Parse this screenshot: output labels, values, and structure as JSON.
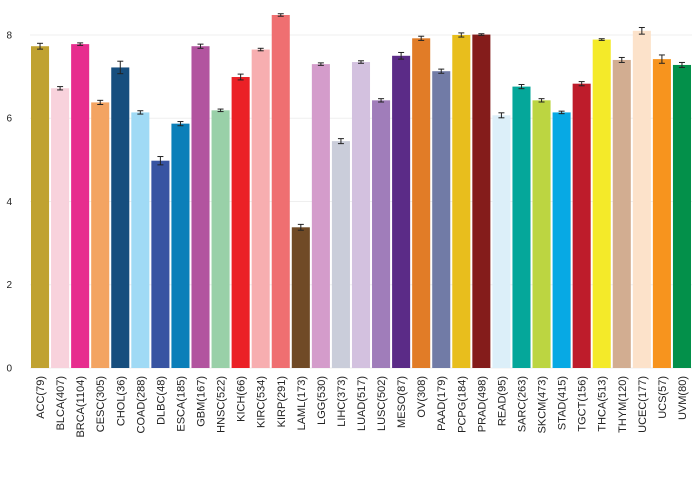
{
  "chart_data": {
    "type": "bar",
    "title": "",
    "xlabel": "",
    "ylabel": "",
    "ylim": [
      0,
      8.6
    ],
    "yticks": [
      0,
      2,
      4,
      6,
      8
    ],
    "grid": "horizontal",
    "legend": "none",
    "error_bars": true,
    "categories": [
      "ACC(79)",
      "BLCA(407)",
      "BRCA(1104)",
      "CESC(305)",
      "CHOL(36)",
      "COAD(288)",
      "DLBC(48)",
      "ESCA(185)",
      "GBM(167)",
      "HNSC(522)",
      "KICH(66)",
      "KIRC(534)",
      "KIRP(291)",
      "LAML(173)",
      "LGG(530)",
      "LIHC(373)",
      "LUAD(517)",
      "LUSC(502)",
      "MESO(87)",
      "OV(308)",
      "PAAD(179)",
      "PCPG(184)",
      "PRAD(498)",
      "READ(95)",
      "SARC(263)",
      "SKCM(473)",
      "STAD(415)",
      "TGCT(156)",
      "THCA(513)",
      "THYM(120)",
      "UCEC(177)",
      "UCS(57)",
      "UVM(80)"
    ],
    "values": [
      7.73,
      6.72,
      7.78,
      6.38,
      7.22,
      6.14,
      4.98,
      5.87,
      7.73,
      6.19,
      6.99,
      7.65,
      8.48,
      3.38,
      7.3,
      5.45,
      7.35,
      6.43,
      7.5,
      7.92,
      7.13,
      8.0,
      8.01,
      6.07,
      6.76,
      6.43,
      6.14,
      6.83,
      7.89,
      7.4,
      8.1,
      7.42,
      7.28
    ],
    "errors": [
      0.07,
      0.04,
      0.03,
      0.05,
      0.15,
      0.04,
      0.1,
      0.05,
      0.05,
      0.03,
      0.07,
      0.03,
      0.03,
      0.07,
      0.03,
      0.06,
      0.03,
      0.04,
      0.08,
      0.05,
      0.05,
      0.05,
      0.02,
      0.06,
      0.05,
      0.04,
      0.03,
      0.05,
      0.02,
      0.06,
      0.08,
      0.1,
      0.06
    ],
    "colors": [
      "#c0a231",
      "#f8d2dc",
      "#e72d8e",
      "#f3a462",
      "#164e7e",
      "#a0daf5",
      "#3854a2",
      "#0b7fb9",
      "#b2549f",
      "#99d0a8",
      "#eb2126",
      "#f7aeb0",
      "#ef6f71",
      "#704a26",
      "#d49ccb",
      "#cacdda",
      "#d3c1df",
      "#a07dba",
      "#5b2b87",
      "#e17c27",
      "#717ba6",
      "#e8be1d",
      "#841c1b",
      "#dceff9",
      "#05a79a",
      "#bcd541",
      "#07a9e4",
      "#be1c2b",
      "#f4ea29",
      "#d2ad91",
      "#fce2ca",
      "#f7941e",
      "#03904a"
    ]
  }
}
